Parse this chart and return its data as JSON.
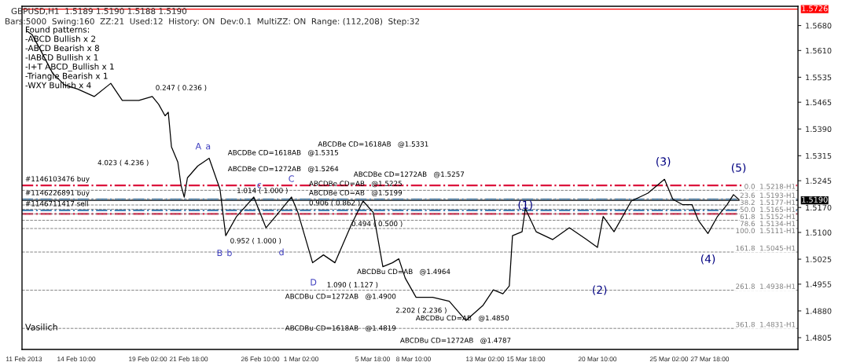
{
  "chart_data": {
    "type": "line",
    "title": "GBPUSD,H1  1.5189 1.5190 1.5188 1.5190",
    "subtitle": "Bars:5000  Swing:160  ZZ:21  Used:12  History: ON  Dev:0.1  MultiZZ: ON  Range: (112,208)  Step:32",
    "x": [
      "2013-02-11T04:00",
      "2013-02-11T13:00",
      "2013-02-12T02:00",
      "2013-02-12T21:00",
      "2013-02-13T16:00",
      "2013-02-14T12:00",
      "2013-02-15T14:00",
      "2013-02-16T16:00",
      "2013-02-17T10:00",
      "2013-02-18T12:00",
      "2013-02-19T09:00",
      "2013-02-19T19:00",
      "2013-02-20T05:00",
      "2013-02-20T10:00",
      "2013-02-20T15:00",
      "2013-02-21T01:00",
      "2013-02-21T06:00",
      "2013-02-21T11:00",
      "2013-02-21T16:00",
      "2013-02-22T08:00",
      "2013-02-23T02:00",
      "2013-02-23T19:00",
      "2013-02-24T04:00",
      "2013-02-24T21:00",
      "2013-02-26T00:00",
      "2013-02-26T19:00",
      "2013-02-27T10:00",
      "2013-02-28T01:00",
      "2013-02-28T11:00",
      "2013-02-28T21:00",
      "2013-03-01T20:00",
      "2013-03-02T13:00",
      "2013-03-03T07:00",
      "2013-03-04T09:00",
      "2013-03-05T03:00",
      "2013-03-05T19:00",
      "2013-03-06T10:00",
      "2013-03-07T01:00",
      "2013-03-07T11:00",
      "2013-03-07T21:00",
      "2013-03-08T14:00",
      "2013-03-09T16:00",
      "2013-03-10T18:00",
      "2013-03-11T20:00",
      "2013-03-12T23:00",
      "2013-03-13T15:00",
      "2013-03-14T06:00",
      "2013-03-14T16:00",
      "2013-03-14T21:00",
      "2013-03-15T12:00",
      "2013-03-15T17:00",
      "2013-03-16T10:00",
      "2013-03-17T12:00",
      "2013-03-18T14:00",
      "2013-03-19T17:00",
      "2013-03-20T10:00",
      "2013-03-20T19:00",
      "2013-03-21T12:00",
      "2013-03-22T15:00",
      "2013-03-23T17:00",
      "2013-03-24T19:00",
      "2013-03-25T08:00",
      "2013-03-25T23:00",
      "2013-03-26T14:00",
      "2013-03-27T00:00",
      "2013-03-27T15:00",
      "2013-03-28T06:00",
      "2013-03-28T21:00",
      "2013-03-29T07:00",
      "2013-03-29T17:00"
    ],
    "series": [
      {
        "color": "#000000",
        "values": [
          1.5665,
          1.5654,
          1.5611,
          1.5546,
          1.5513,
          1.5502,
          1.5481,
          1.5518,
          1.547,
          1.547,
          1.5481,
          1.5459,
          1.5427,
          1.5437,
          1.534,
          1.5297,
          1.5232,
          1.5199,
          1.5253,
          1.5286,
          1.5308,
          1.5221,
          1.5091,
          1.5145,
          1.5199,
          1.5113,
          1.5145,
          1.5178,
          1.5199,
          1.5156,
          1.5015,
          1.5037,
          1.5015,
          1.5123,
          1.5188,
          1.5156,
          1.5004,
          1.5015,
          1.5026,
          1.4972,
          1.4918,
          1.4918,
          1.4907,
          1.4853,
          1.4896,
          1.4939,
          1.4928,
          1.495,
          1.5091,
          1.5102,
          1.5167,
          1.5102,
          1.508,
          1.5113,
          1.508,
          1.5058,
          1.5145,
          1.5102,
          1.5188,
          1.521,
          1.5249,
          1.5193,
          1.5178,
          1.5178,
          1.5134,
          1.5097,
          1.5145,
          1.5178,
          1.5206,
          1.519
        ]
      }
    ],
    "xlim": [
      "2013-02-10T21:00",
      "2013-04-02T12:00"
    ],
    "xticks": [
      {
        "value": "2013-02-11T00:00",
        "label": "11 Feb 2013"
      },
      {
        "value": "2013-02-14T10:00",
        "label": "14 Feb 10:00"
      },
      {
        "value": "2013-02-19T02:00",
        "label": "19 Feb 02:00"
      },
      {
        "value": "2013-02-21T18:00",
        "label": "21 Feb 18:00"
      },
      {
        "value": "2013-02-26T10:00",
        "label": "26 Feb 10:00"
      },
      {
        "value": "2013-03-01T02:00",
        "label": "1 Mar 02:00"
      },
      {
        "value": "2013-03-05T18:00",
        "label": "5 Mar 18:00"
      },
      {
        "value": "2013-03-08T10:00",
        "label": "8 Mar 10:00"
      },
      {
        "value": "2013-03-13T02:00",
        "label": "13 Mar 02:00"
      },
      {
        "value": "2013-03-15T18:00",
        "label": "15 Mar 18:00"
      },
      {
        "value": "2013-03-20T10:00",
        "label": "20 Mar 10:00"
      },
      {
        "value": "2013-03-25T02:00",
        "label": "25 Mar 02:00"
      },
      {
        "value": "2013-03-27T18:00",
        "label": "27 Mar 18:00"
      }
    ],
    "ylim": [
      1.4772,
      1.5734
    ],
    "yticks": [
      1.4805,
      {
        "value": 1.488,
        "label": "1.4880"
      },
      1.4955,
      1.5025,
      {
        "value": 1.51,
        "label": "1.5100"
      },
      {
        "value": 1.517,
        "label": "1.5170"
      },
      1.5245,
      1.5315,
      {
        "value": 1.539,
        "label": "1.5390"
      },
      1.5465,
      1.5535,
      {
        "value": 1.561,
        "label": "1.5610"
      },
      {
        "value": 1.568,
        "label": "1.5680"
      }
    ],
    "grid": false,
    "ref_lines": [
      {
        "axis": "y",
        "value": 1.5726,
        "label": "1.5726",
        "color": "#ff0000",
        "line_style": "solid"
      },
      {
        "axis": "y",
        "value": 1.519,
        "label": "1.5190",
        "color": "#000000",
        "line_style": "solid"
      },
      {
        "axis": "y",
        "value": 1.5232,
        "color": "#dc143c",
        "line_style": "dashed"
      },
      {
        "axis": "y",
        "value": 1.5193,
        "color": "#4682b4",
        "line_style": "dashed"
      },
      {
        "axis": "y",
        "value": 1.5162,
        "color": "#4682b4",
        "line_style": "dashed"
      },
      {
        "axis": "y",
        "value": 1.5152,
        "color": "#dc143c",
        "line_style": "dashed"
      },
      {
        "axis": "y",
        "value": 1.5218,
        "label": "0.0  1.5218-H1",
        "color": "#808080",
        "line_style": "dotted"
      },
      {
        "axis": "y",
        "value": 1.5193,
        "label": "23.6  1.5193-H1",
        "color": "#808080",
        "line_style": "dotted"
      },
      {
        "axis": "y",
        "value": 1.5177,
        "label": "38.2  1.5177-H1",
        "color": "#808080",
        "line_style": "dotted"
      },
      {
        "axis": "y",
        "value": 1.5165,
        "label": "50.0  1.5165-H1",
        "color": "#808080",
        "line_style": "dotted"
      },
      {
        "axis": "y",
        "value": 1.5152,
        "label": "61.8  1.5152-H1",
        "color": "#808080",
        "line_style": "dotted"
      },
      {
        "axis": "y",
        "value": 1.5134,
        "label": "78.6  1.5134-H1",
        "color": "#808080",
        "line_style": "dotted"
      },
      {
        "axis": "y",
        "value": 1.5111,
        "label": "100.0  1.5111-H1",
        "color": "#808080",
        "line_style": "dotted"
      },
      {
        "axis": "y",
        "value": 1.5045,
        "label": "161.8  1.5045-H1",
        "color": "#808080",
        "line_style": "dotted"
      },
      {
        "axis": "y",
        "value": 1.4938,
        "label": "261.8  1.4938-H1",
        "color": "#808080",
        "line_style": "dotted"
      },
      {
        "axis": "y",
        "value": 1.4831,
        "label": "361.8  1.4831-H1",
        "color": "#808080",
        "line_style": "dotted"
      }
    ],
    "annotations": [
      "Found patterns:",
      "-ABCD Bullish x 2",
      "-ABCD Bearish x 8",
      "-IABCD Bullish x 1",
      "-I+T ABCD_Bullish x 1",
      "-Triangle Bearish x 1",
      "-WXY Bullish x 4",
      "Vasilich",
      "#1146103476 buy",
      "#1146226891 buy",
      "#1146711417 sell",
      "0.247 ( 0.236 )",
      "4.023 ( 4.236 )",
      "ABCDBe CD=1618AB   @1.5331",
      "ABCDBe CD=1618AB   @1.5315",
      "ABCDBe CD=1272AB   @1.5264",
      "ABCDBe CD=1272AB   @1.5257",
      "ABCDBe CD=AB   @1.5225",
      "ABCDBe CD=AB   @1.5199",
      "1.014 ( 1.000 )",
      "0.906 ( 0.862 )",
      "0.952 ( 1.000 )",
      "0.494 ( 0.500 )",
      "1.090 ( 1.127 )",
      "2.202 ( 2.236 )",
      "ABCDBu CD=AB   @1.4964",
      "ABCDBu CD=1272AB   @1.4900",
      "ABCDBu CD=AB   @1.4850",
      "ABCDBu CD=1618AB   @1.4819",
      "ABCDBu CD=1272AB   @1.4787",
      "A",
      "a",
      "B",
      "b",
      "c",
      "C",
      "d",
      "D",
      "(1)",
      "(2)",
      "(3)",
      "(4)",
      "(5)"
    ]
  }
}
